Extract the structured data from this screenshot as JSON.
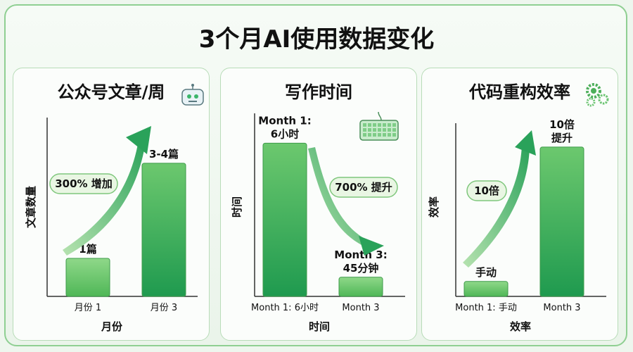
{
  "title": "3个月AI使用数据变化",
  "colors": {
    "bar_dark": "#1f9a4f",
    "bar_light": "#7ecf7c",
    "arrow": "#2aa25a",
    "pill_bg": "#e9f6e3",
    "pill_border": "#7fc77c"
  },
  "chart_data": [
    {
      "type": "bar",
      "title": "公众号文章/周",
      "icon": "robot-icon",
      "xlabel": "月份",
      "ylabel": "文章数量",
      "categories": [
        "月份 1",
        "月份 3"
      ],
      "values": [
        1,
        3.5
      ],
      "ylim": [
        0,
        4.7
      ],
      "data_labels": [
        "1篇",
        "3-4篇"
      ],
      "annotation": "300% 增加",
      "trend": "up"
    },
    {
      "type": "bar",
      "title": "写作时间",
      "icon": "keyboard-icon",
      "xlabel": "时间",
      "ylabel": "时间",
      "categories": [
        "Month 1: 6小时",
        "Month 3"
      ],
      "values": [
        360,
        45
      ],
      "ylim": [
        0,
        430
      ],
      "data_labels": [
        "Month 1:\n6小时",
        "Month 3:\n45分钟"
      ],
      "annotation": "700% 提升",
      "trend": "down"
    },
    {
      "type": "bar",
      "title": "代码重构效率",
      "icon": "gears-icon",
      "xlabel": "效率",
      "ylabel": "效率",
      "categories": [
        "Month 1: 手动",
        "Month 3"
      ],
      "values": [
        1,
        10
      ],
      "ylim": [
        0,
        11.6
      ],
      "data_labels": [
        "手动",
        "10倍\n提升"
      ],
      "annotation": "10倍",
      "trend": "up"
    }
  ]
}
